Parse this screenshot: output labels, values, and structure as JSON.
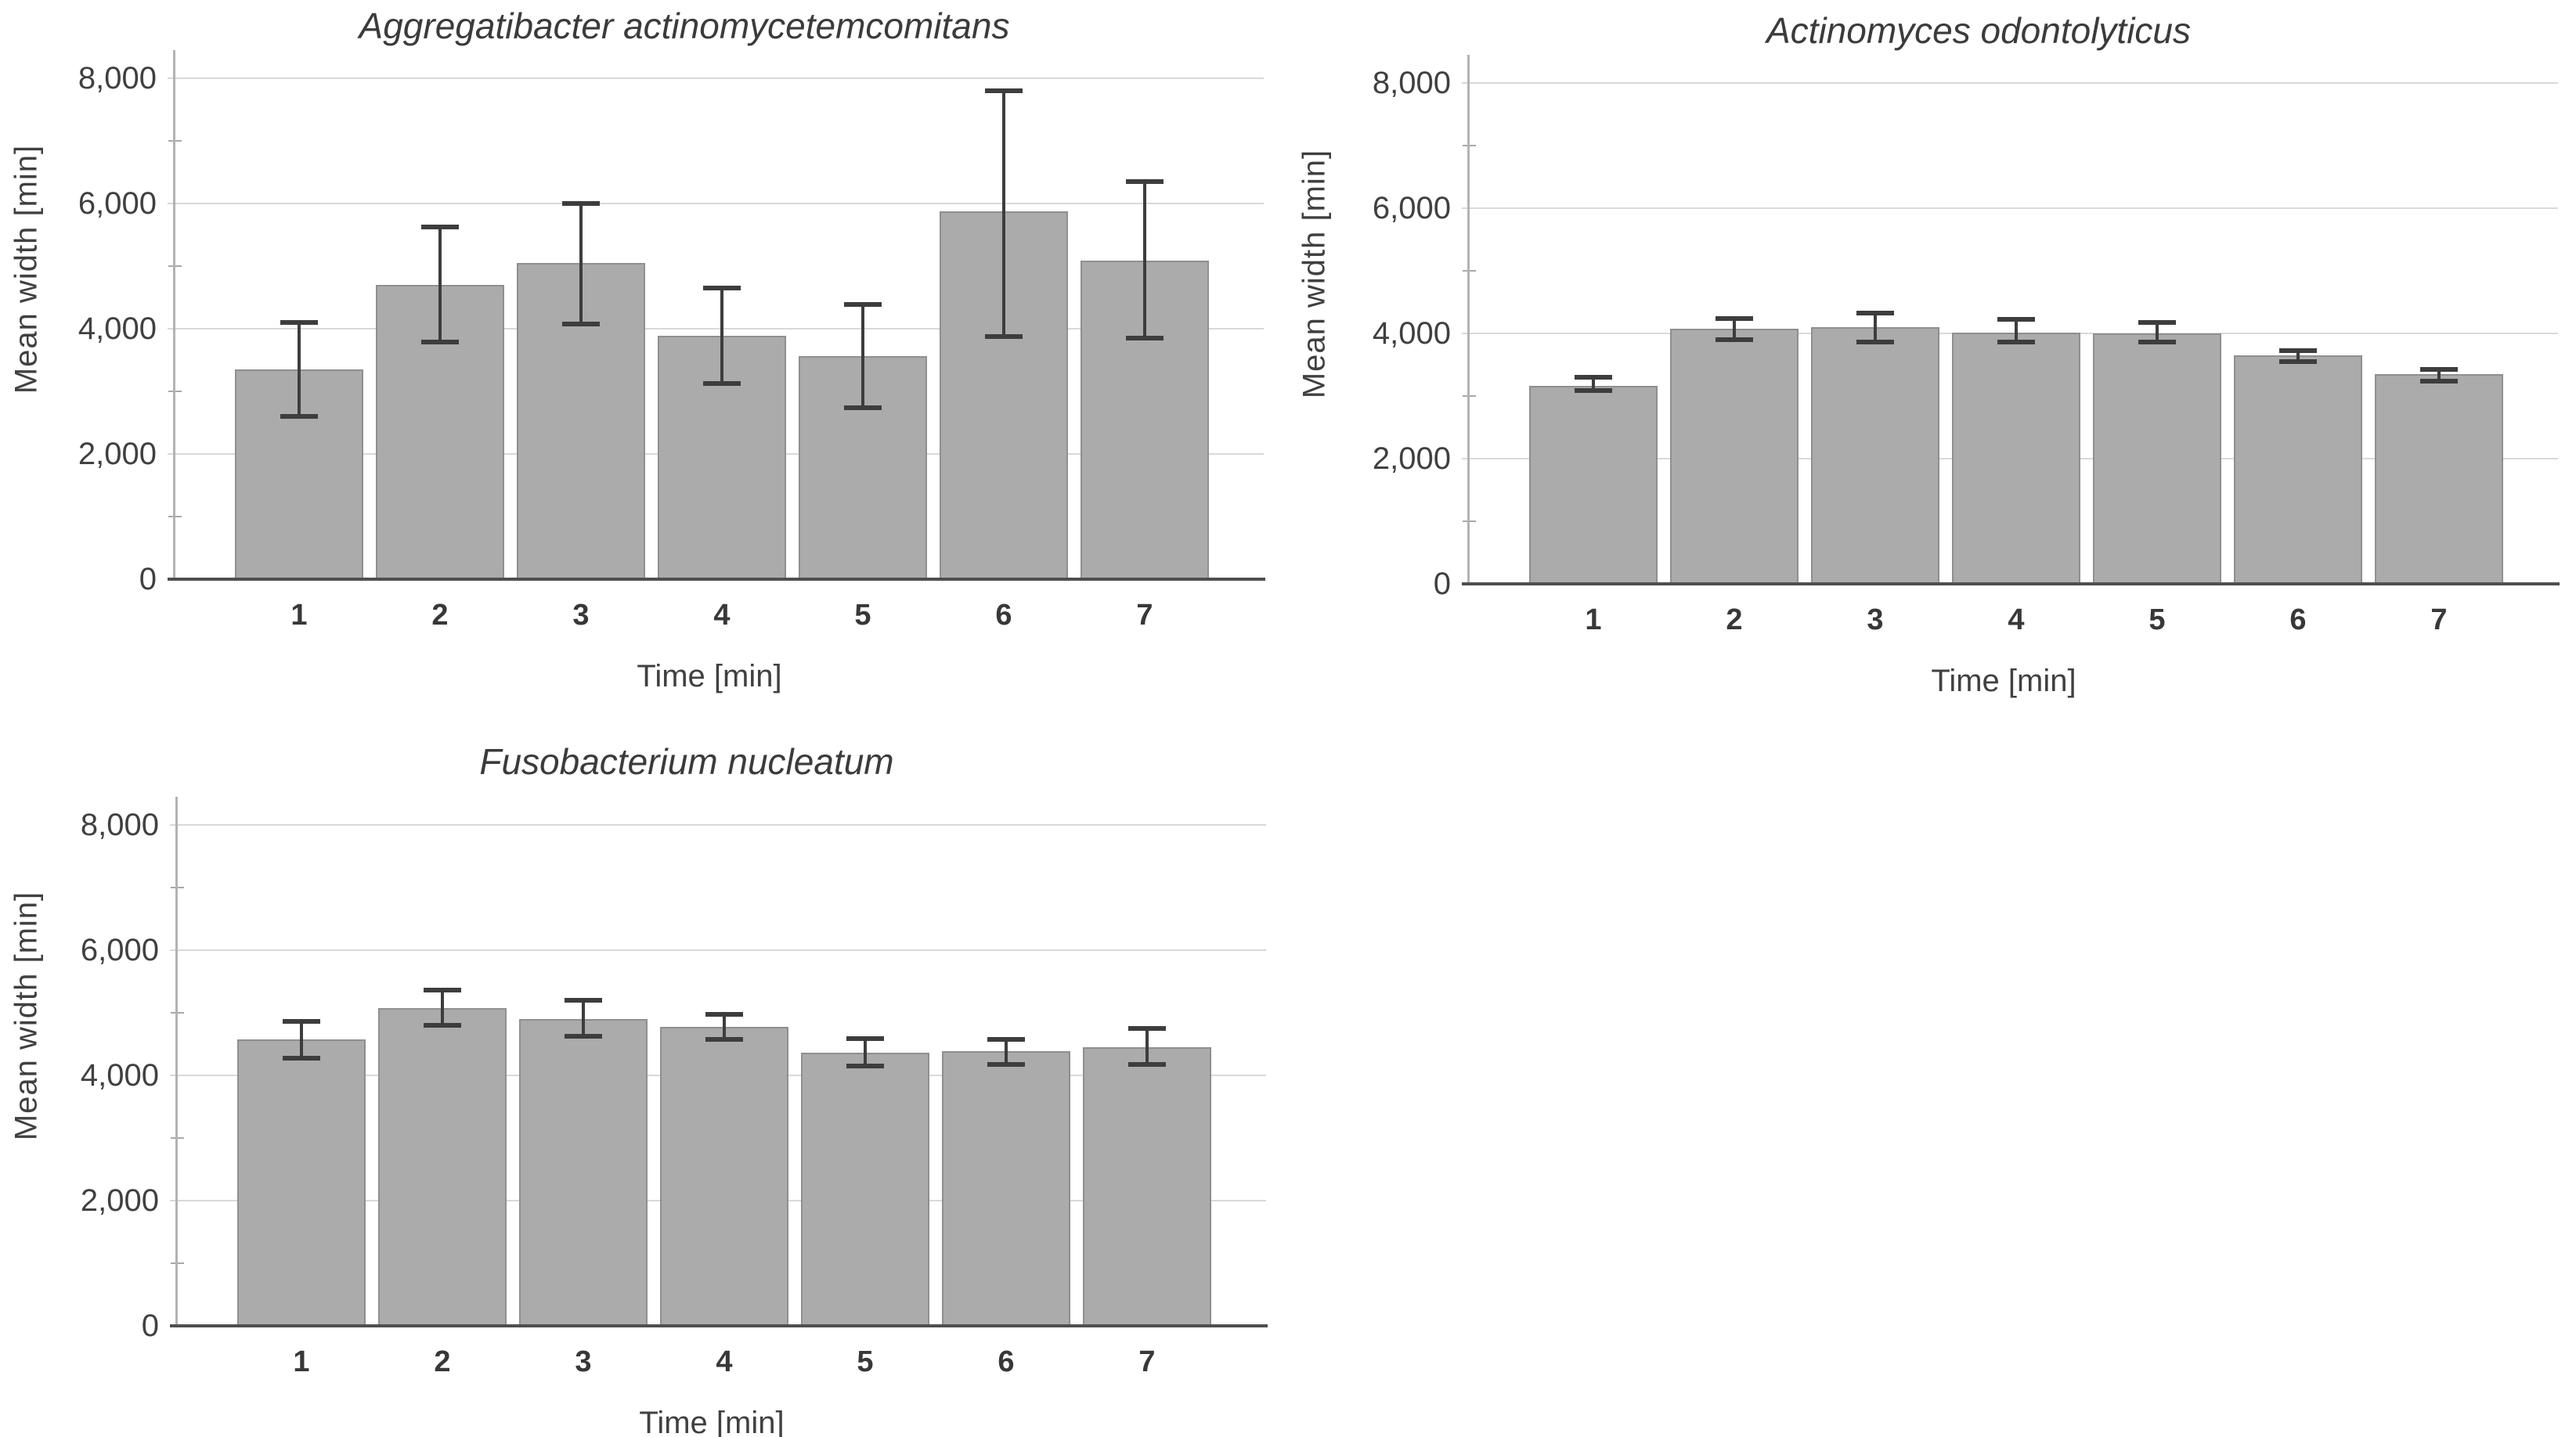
{
  "figure": {
    "background": "#ffffff",
    "style": {
      "bar_fill": "#ababab",
      "bar_border": "#8f8f8f",
      "gridline": "#d9d9d9",
      "y_axis_line": "#b3b3b3",
      "x_axis_line": "#4f4f4f",
      "error_bar": "#3d3d3d",
      "tick_text": "#404040",
      "title_text": "#3b3b3b"
    }
  },
  "chart_data": [
    {
      "type": "bar",
      "title": "Aggregatibacter actinomycetemcomitans",
      "xlabel": "Time [min]",
      "ylabel": "Mean width [min]",
      "categories": [
        "1",
        "2",
        "3",
        "4",
        "5",
        "6",
        "7"
      ],
      "values": [
        3350,
        4700,
        5050,
        3890,
        3560,
        5870,
        5090
      ],
      "error_low": [
        2600,
        3790,
        4070,
        3120,
        2740,
        3880,
        3850
      ],
      "error_high": [
        4100,
        5620,
        6000,
        4650,
        4390,
        7800,
        6350
      ],
      "ylim": [
        0,
        8450
      ],
      "yticks": [
        {
          "value": 0,
          "label": "0"
        },
        {
          "value": 2000,
          "label": "2,000"
        },
        {
          "value": 4000,
          "label": "4,000"
        },
        {
          "value": 6000,
          "label": "6,000"
        },
        {
          "value": 8000,
          "label": "8,000"
        }
      ],
      "minor_tick_interval": 1000,
      "grid": true,
      "legend": false,
      "error_bars": true
    },
    {
      "type": "bar",
      "title": "Actinomyces odontolyticus",
      "xlabel": "Time [min]",
      "ylabel": "Mean width [min]",
      "categories": [
        "1",
        "2",
        "3",
        "4",
        "5",
        "6",
        "7"
      ],
      "values": [
        3160,
        4070,
        4100,
        4010,
        4000,
        3650,
        3350
      ],
      "error_low": [
        3090,
        3900,
        3860,
        3860,
        3860,
        3550,
        3240
      ],
      "error_high": [
        3300,
        4240,
        4330,
        4230,
        4180,
        3730,
        3430
      ],
      "ylim": [
        0,
        8450
      ],
      "yticks": [
        {
          "value": 0,
          "label": "0"
        },
        {
          "value": 2000,
          "label": "2,000"
        },
        {
          "value": 4000,
          "label": "4,000"
        },
        {
          "value": 6000,
          "label": "6,000"
        },
        {
          "value": 8000,
          "label": "8,000"
        }
      ],
      "minor_tick_interval": 1000,
      "grid": true,
      "legend": false,
      "error_bars": true
    },
    {
      "type": "bar",
      "title": "Fusobacterium nucleatum",
      "xlabel": "Time [min]",
      "ylabel": "Mean width [min]",
      "categories": [
        "1",
        "2",
        "3",
        "4",
        "5",
        "6",
        "7"
      ],
      "values": [
        4570,
        5080,
        4900,
        4770,
        4360,
        4390,
        4450
      ],
      "error_low": [
        4280,
        4800,
        4620,
        4570,
        4150,
        4180,
        4170
      ],
      "error_high": [
        4860,
        5360,
        5200,
        4980,
        4590,
        4580,
        4750
      ],
      "ylim": [
        0,
        8450
      ],
      "yticks": [
        {
          "value": 0,
          "label": "0"
        },
        {
          "value": 2000,
          "label": "2,000"
        },
        {
          "value": 4000,
          "label": "4,000"
        },
        {
          "value": 6000,
          "label": "6,000"
        },
        {
          "value": 8000,
          "label": "8,000"
        }
      ],
      "minor_tick_interval": 1000,
      "grid": true,
      "legend": false,
      "error_bars": true
    }
  ]
}
